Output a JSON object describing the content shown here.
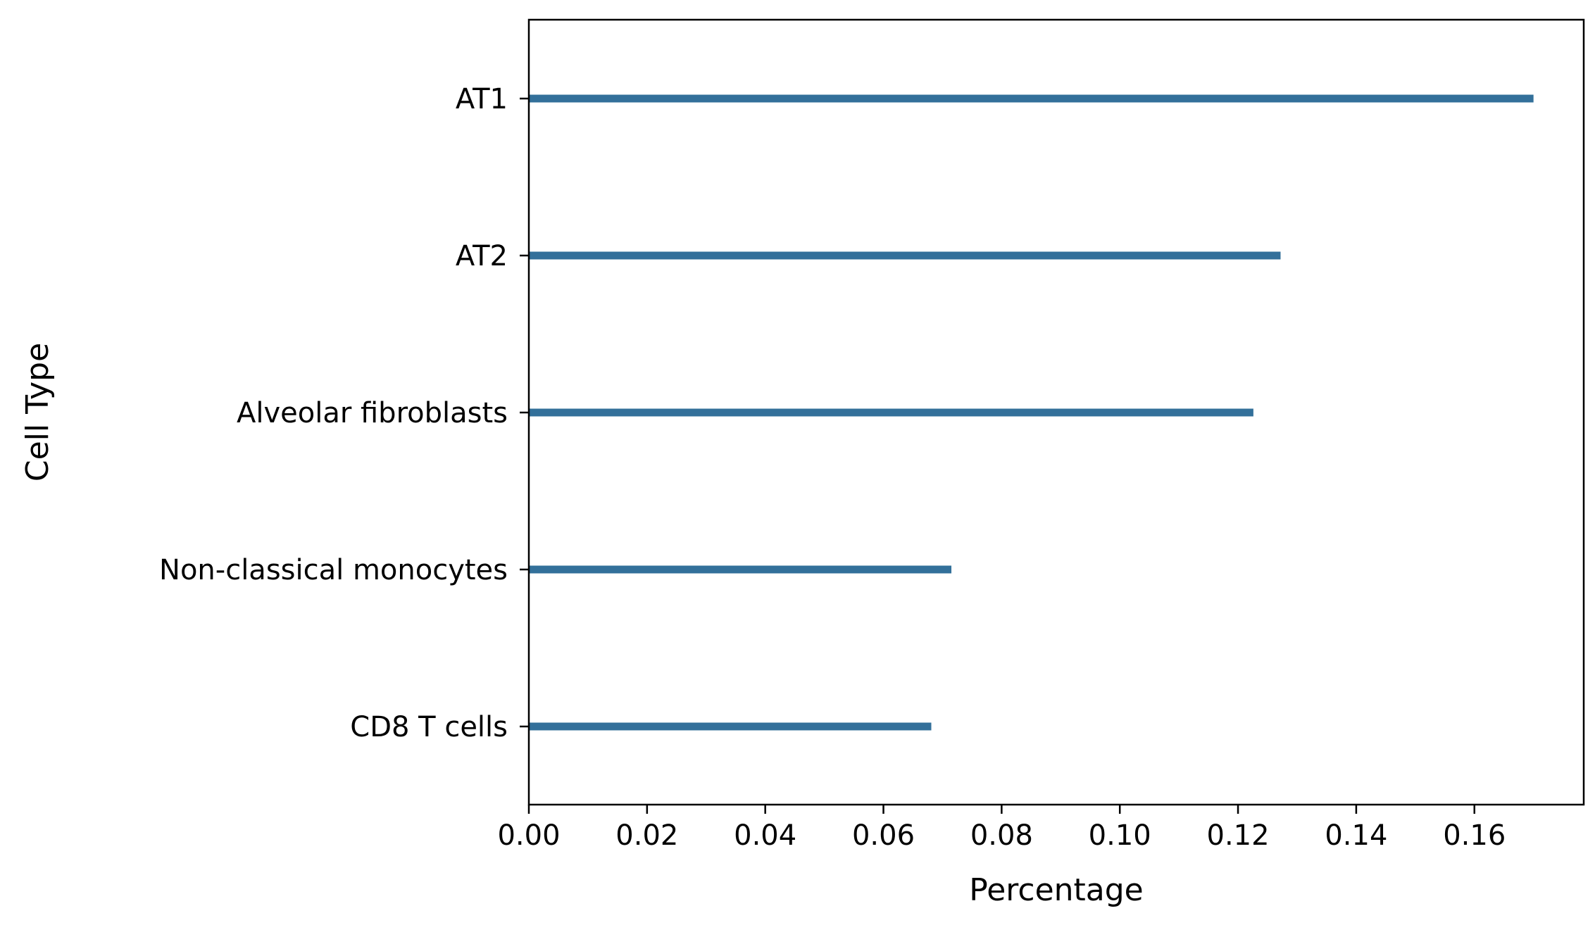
{
  "chart_data": {
    "type": "bar",
    "orientation": "horizontal",
    "categories": [
      "AT1",
      "AT2",
      "Alveolar fibroblasts",
      "Non-classical monocytes",
      "CD8 T cells"
    ],
    "values": [
      0.17,
      0.1272,
      0.1226,
      0.0715,
      0.0681
    ],
    "xlabel": "Percentage",
    "ylabel": "Cell Type",
    "xlim": [
      0,
      0.1785
    ],
    "xticks": [
      "0.00",
      "0.02",
      "0.04",
      "0.06",
      "0.08",
      "0.10",
      "0.12",
      "0.14",
      "0.16"
    ],
    "grid": false,
    "bar_color": "#33709a"
  }
}
